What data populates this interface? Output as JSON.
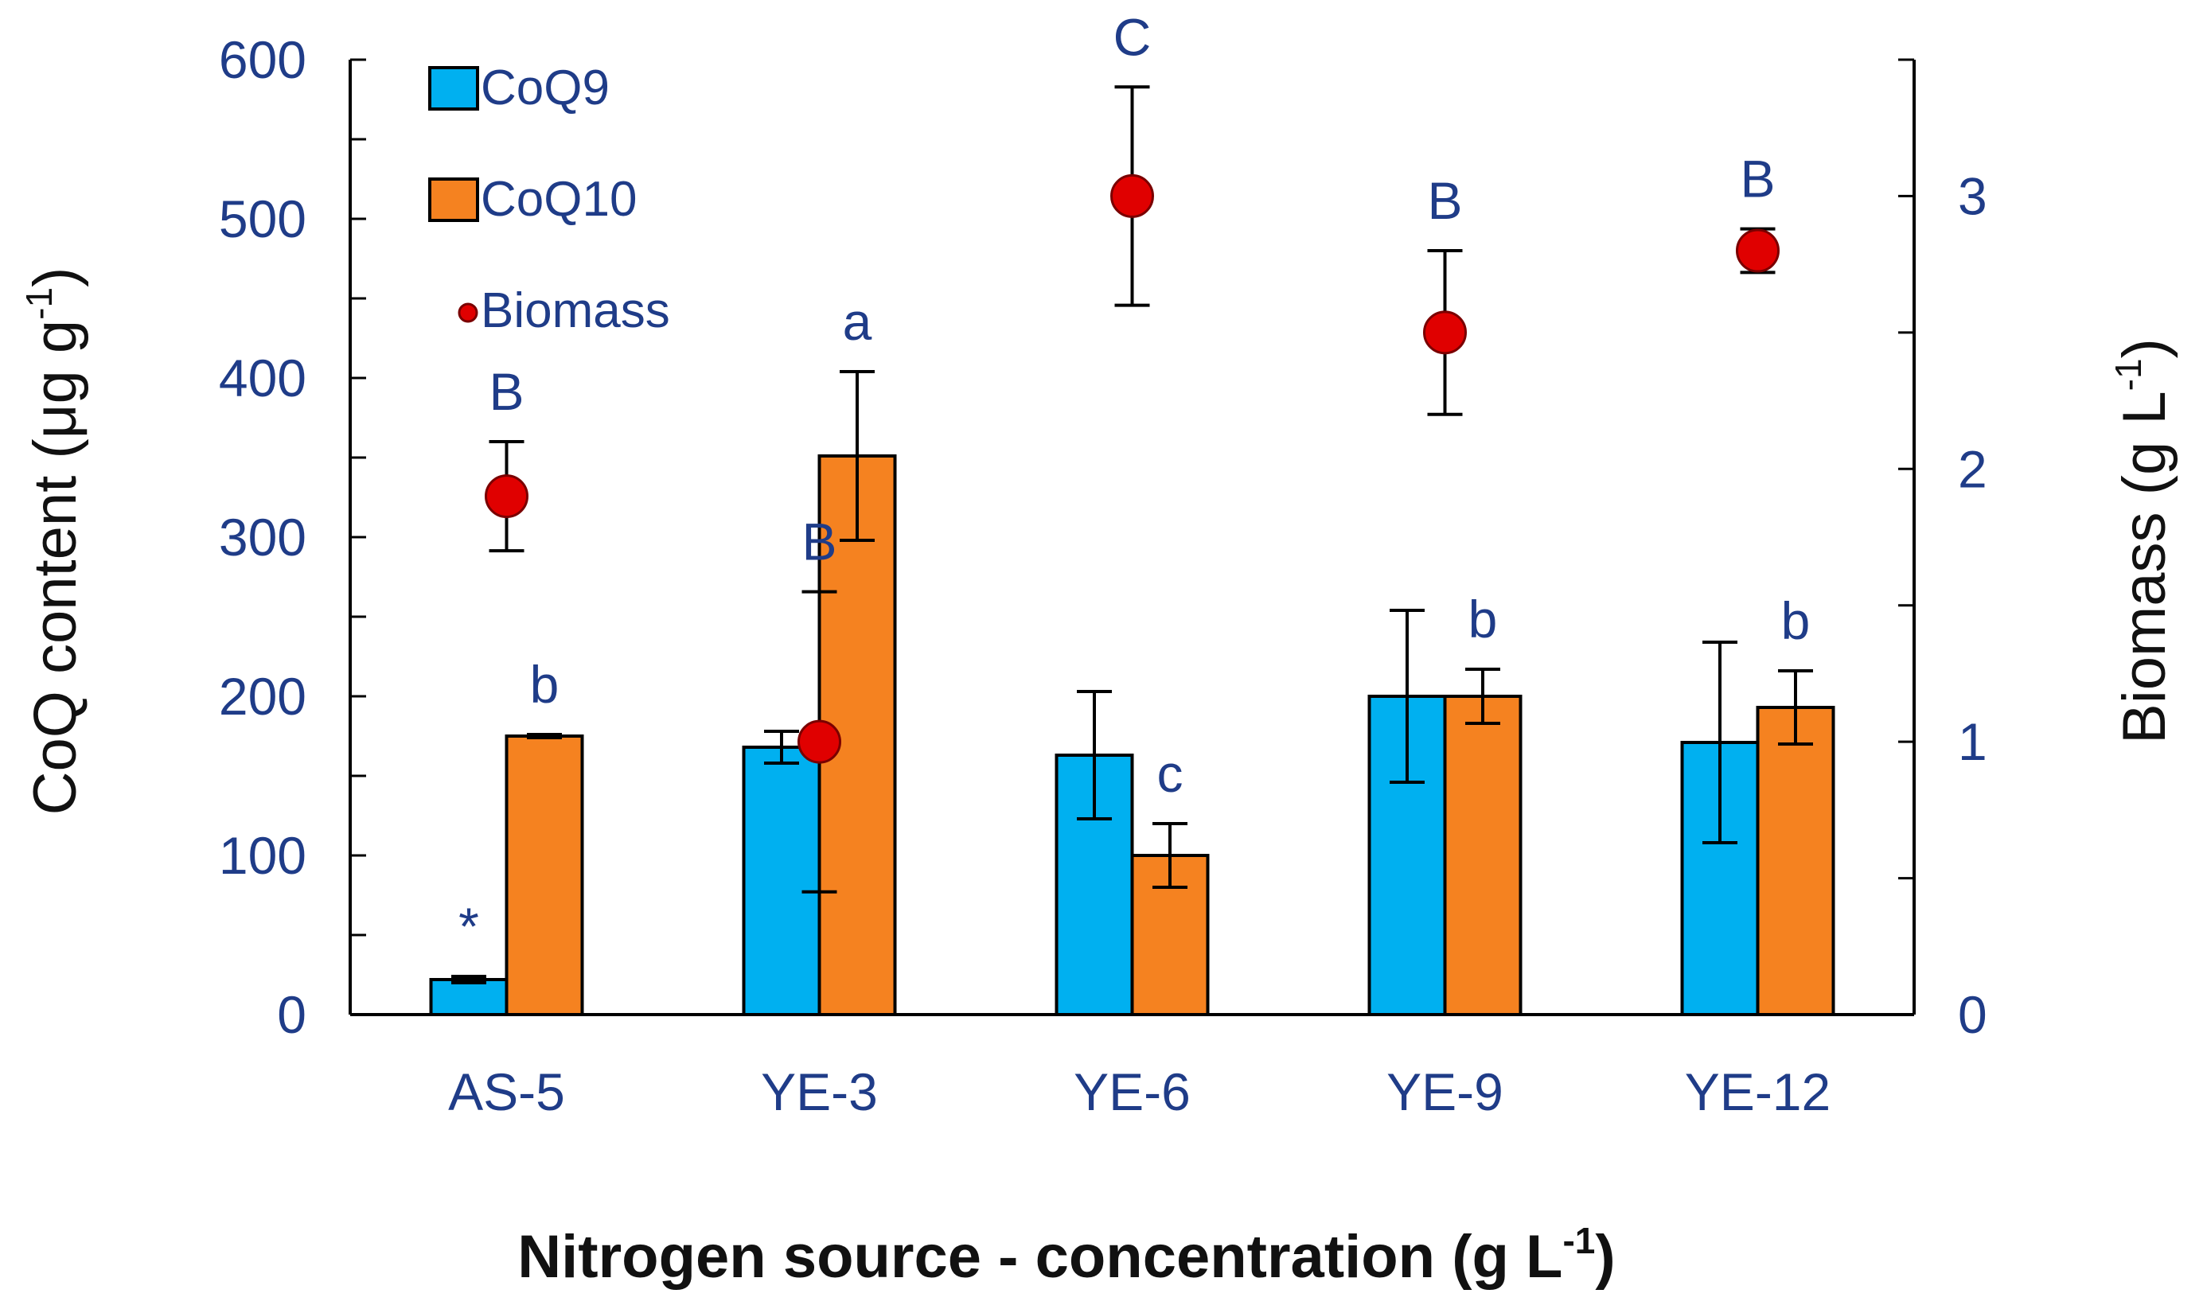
{
  "colors": {
    "coq9": "#00b0f0",
    "coq10": "#f58220",
    "biomass": "#e00000"
  },
  "chart_data": {
    "type": "bar",
    "title": "",
    "xlabel": "Nitrogen source - concentration (g L-1)",
    "xlabel_parts": {
      "main": "Nitrogen source - concentration (g L",
      "sup": "-1",
      "close": ")"
    },
    "ylabel": "CoQ content (μg g-1)",
    "ylabel_parts": {
      "main": "CoQ content (μg g",
      "sup": "-1",
      "close": ")"
    },
    "y2label": "Biomass (g L-1)",
    "y2label_parts": {
      "main": "Biomass (g L",
      "sup": "-1",
      "close": ")"
    },
    "ylim": [
      0,
      600
    ],
    "y2lim": [
      0,
      3.5
    ],
    "yticks": [
      0,
      100,
      200,
      300,
      400,
      500,
      600
    ],
    "y2ticks": [
      0,
      1,
      2,
      3
    ],
    "categories": [
      "AS-5",
      "YE-3",
      "YE-6",
      "YE-9",
      "YE-12"
    ],
    "series": [
      {
        "name": "CoQ9",
        "kind": "bar",
        "values": [
          22,
          168,
          163,
          200,
          171
        ],
        "errors": [
          2,
          10,
          40,
          54,
          63
        ],
        "annotations": [
          "*",
          "",
          "",
          "",
          ""
        ]
      },
      {
        "name": "CoQ10",
        "kind": "bar",
        "values": [
          175,
          351,
          100,
          200,
          193
        ],
        "errors": [
          1,
          53,
          20,
          17,
          23
        ],
        "annotations": [
          "b",
          "a",
          "c",
          "b",
          "b"
        ]
      },
      {
        "name": "Biomass",
        "kind": "point",
        "axis": "right",
        "values": [
          1.9,
          1.0,
          3.0,
          2.5,
          2.8
        ],
        "errors": [
          0.2,
          0.55,
          0.4,
          0.3,
          0.08
        ],
        "annotations": [
          "B",
          "B",
          "C",
          "B",
          "B"
        ]
      }
    ],
    "legend": {
      "position": "top-left",
      "entries": [
        "CoQ9",
        "CoQ10",
        "Biomass"
      ]
    }
  }
}
